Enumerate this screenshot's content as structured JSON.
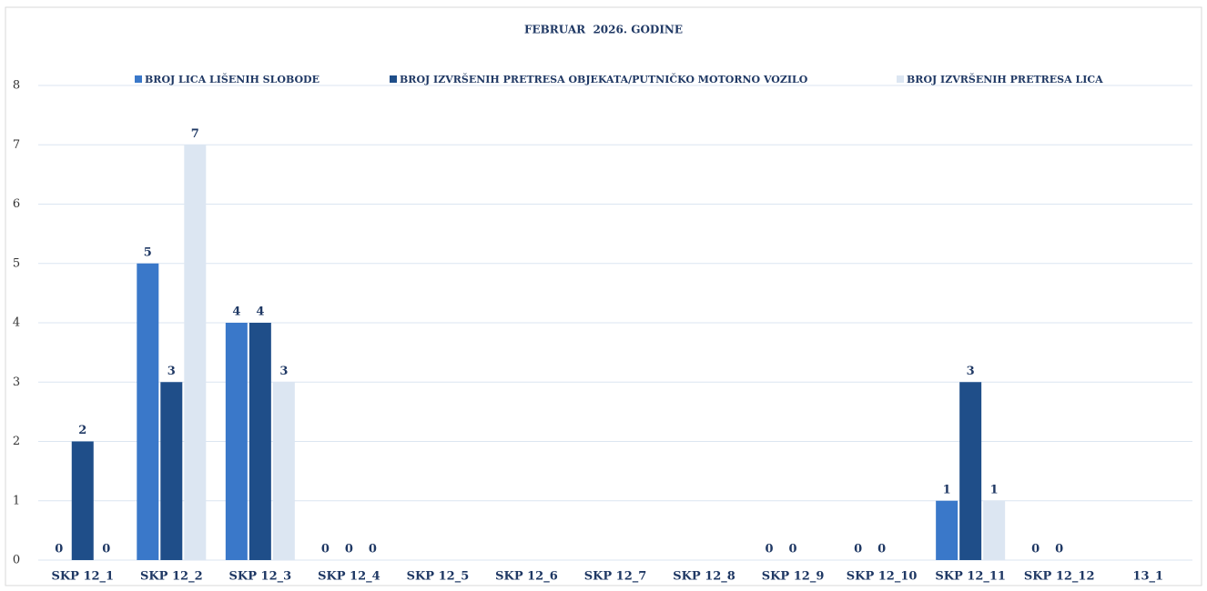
{
  "chart_data": {
    "type": "bar",
    "title": "FEBRUAR  2026. GODINE",
    "categories": [
      "SKP 12_1",
      "SKP 12_2",
      "SKP 12_3",
      "SKP 12_4",
      "SKP 12_5",
      "SKP 12_6",
      "SKP 12_7",
      "SKP 12_8",
      "SKP 12_9",
      "SKP 12_10",
      "SKP 12_11",
      "SKP 12_12",
      "13_1"
    ],
    "series": [
      {
        "name": "BROJ LICA LIŠENIH SLOBODE",
        "color": "#3a78c9",
        "values": [
          0,
          5,
          4,
          0,
          null,
          null,
          null,
          null,
          0,
          0,
          1,
          0,
          null
        ]
      },
      {
        "name": "BROJ IZVRŠENIH PRETRESA OBJEKATA/PUTNIČKO MOTORNO VOZILO",
        "color": "#1f4e89",
        "values": [
          2,
          3,
          4,
          0,
          null,
          null,
          null,
          null,
          0,
          0,
          3,
          0,
          null
        ]
      },
      {
        "name": "BROJ IZVRŠENIH PRETRESA LICA",
        "color": "#dce6f2",
        "values": [
          0,
          7,
          3,
          0,
          null,
          null,
          null,
          null,
          null,
          null,
          1,
          null,
          null
        ]
      }
    ],
    "ylim": [
      0,
      8
    ],
    "yticks": [
      0,
      1,
      2,
      3,
      4,
      5,
      6,
      7,
      8
    ],
    "grid": true,
    "legend": "top"
  }
}
